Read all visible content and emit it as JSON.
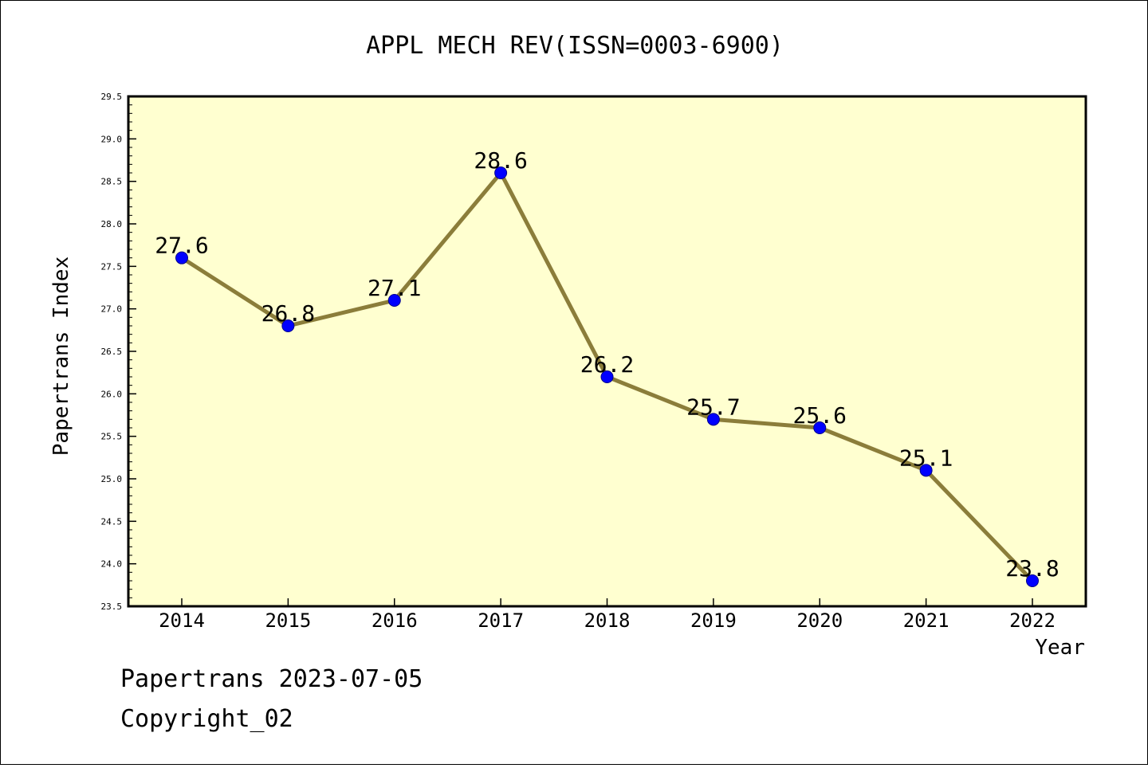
{
  "chart_data": {
    "type": "line",
    "title": "APPL MECH REV(ISSN=0003-6900)",
    "xlabel": "Year",
    "ylabel": "Papertrans Index",
    "categories": [
      "2014",
      "2015",
      "2016",
      "2017",
      "2018",
      "2019",
      "2020",
      "2021",
      "2022"
    ],
    "series": [
      {
        "values": [
          27.6,
          26.8,
          27.1,
          28.6,
          26.2,
          25.7,
          25.6,
          25.1,
          23.8
        ],
        "data_labels": [
          "27.6",
          "26.8",
          "27.1",
          "28.6",
          "26.2",
          "25.7",
          "25.6",
          "25.1",
          "23.8"
        ]
      }
    ],
    "y_ticks": [
      "23.5",
      "24.0",
      "24.5",
      "25.0",
      "25.5",
      "26.0",
      "26.5",
      "27.0",
      "27.5",
      "28.0",
      "28.5",
      "29.0",
      "29.5"
    ],
    "ylim": [
      23.5,
      29.5
    ],
    "grid": false,
    "colors": {
      "plot_background": "#ffffd0",
      "line": "#8b7d3a",
      "marker": "#0000ff",
      "axis": "#000000"
    }
  },
  "footer": {
    "date_text": "Papertrans 2023-07-05",
    "copyright_text": "Copyright_02"
  }
}
